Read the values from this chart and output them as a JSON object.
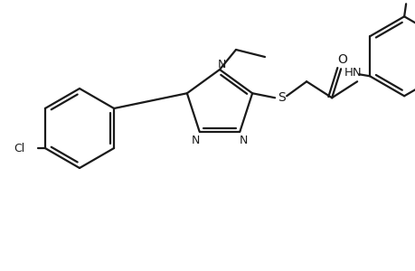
{
  "background_color": "#ffffff",
  "line_color": "#1a1a1a",
  "line_width": 1.6,
  "figsize": [
    4.6,
    3.0
  ],
  "dpi": 100,
  "xlim": [
    0,
    460
  ],
  "ylim": [
    0,
    300
  ]
}
